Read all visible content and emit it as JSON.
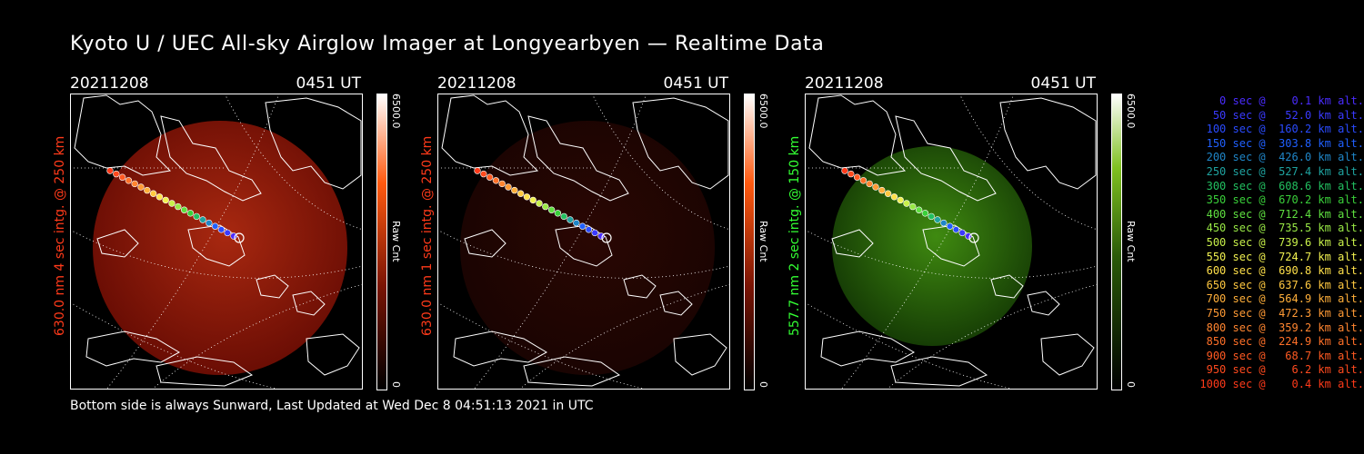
{
  "title": "Kyoto U / UEC All-sky Airglow Imager at Longyearbyen — Realtime Data",
  "footer": "Bottom side is always Sunward, Last Updated at Wed Dec  8 04:51:13 2021 in UTC",
  "panels": [
    {
      "date": "20211208",
      "time": "0451 UT",
      "side_label": "630.0 nm 4 sec intg. @ 250 km",
      "side_color": "#ff3a1a",
      "cbar_top": "6500.0",
      "cbar_mid": "Raw Cnt",
      "cbar_bottom": "0",
      "tint": "red",
      "intensity": 1.0
    },
    {
      "date": "20211208",
      "time": "0451 UT",
      "side_label": "630.0 nm 1 sec intg. @ 250 km",
      "side_color": "#ff3a1a",
      "cbar_top": "6500.0",
      "cbar_mid": "Raw Cnt",
      "cbar_bottom": "0",
      "tint": "red",
      "intensity": 0.35
    },
    {
      "date": "20211208",
      "time": "0451 UT",
      "side_label": "557.7 nm 2 sec intg. @ 150 km",
      "side_color": "#33ff33",
      "cbar_top": "6500.0",
      "cbar_mid": "Raw Cnt",
      "cbar_bottom": "0",
      "tint": "green",
      "intensity": 1.0
    }
  ],
  "legend": [
    {
      "text": "   0 sec @    0.1 km alt.",
      "color": "#4a2cff"
    },
    {
      "text": "  50 sec @   52.0 km alt.",
      "color": "#3a3aff"
    },
    {
      "text": " 100 sec @  160.2 km alt.",
      "color": "#2a4bff"
    },
    {
      "text": " 150 sec @  303.8 km alt.",
      "color": "#2060ff"
    },
    {
      "text": " 200 sec @  426.0 km alt.",
      "color": "#1f86c8"
    },
    {
      "text": " 250 sec @  527.4 km alt.",
      "color": "#1fa3a0"
    },
    {
      "text": " 300 sec @  608.6 km alt.",
      "color": "#22c060"
    },
    {
      "text": " 350 sec @  670.2 km alt.",
      "color": "#3ad03a"
    },
    {
      "text": " 400 sec @  712.4 km alt.",
      "color": "#5fe040"
    },
    {
      "text": " 450 sec @  735.5 km alt.",
      "color": "#98e845"
    },
    {
      "text": " 500 sec @  739.6 km alt.",
      "color": "#c8f04a"
    },
    {
      "text": " 550 sec @  724.7 km alt.",
      "color": "#f0f050"
    },
    {
      "text": " 600 sec @  690.8 km alt.",
      "color": "#ffe04a"
    },
    {
      "text": " 650 sec @  637.6 km alt.",
      "color": "#ffc840"
    },
    {
      "text": " 700 sec @  564.9 km alt.",
      "color": "#ffaf3a"
    },
    {
      "text": " 750 sec @  472.3 km alt.",
      "color": "#ff9a35"
    },
    {
      "text": " 800 sec @  359.2 km alt.",
      "color": "#ff8530"
    },
    {
      "text": " 850 sec @  224.9 km alt.",
      "color": "#ff7028"
    },
    {
      "text": " 900 sec @   68.7 km alt.",
      "color": "#ff5a22"
    },
    {
      "text": " 950 sec @    6.2 km alt.",
      "color": "#ff4a1e"
    },
    {
      "text": "1000 sec @    0.4 km alt.",
      "color": "#ff3a1a"
    }
  ]
}
